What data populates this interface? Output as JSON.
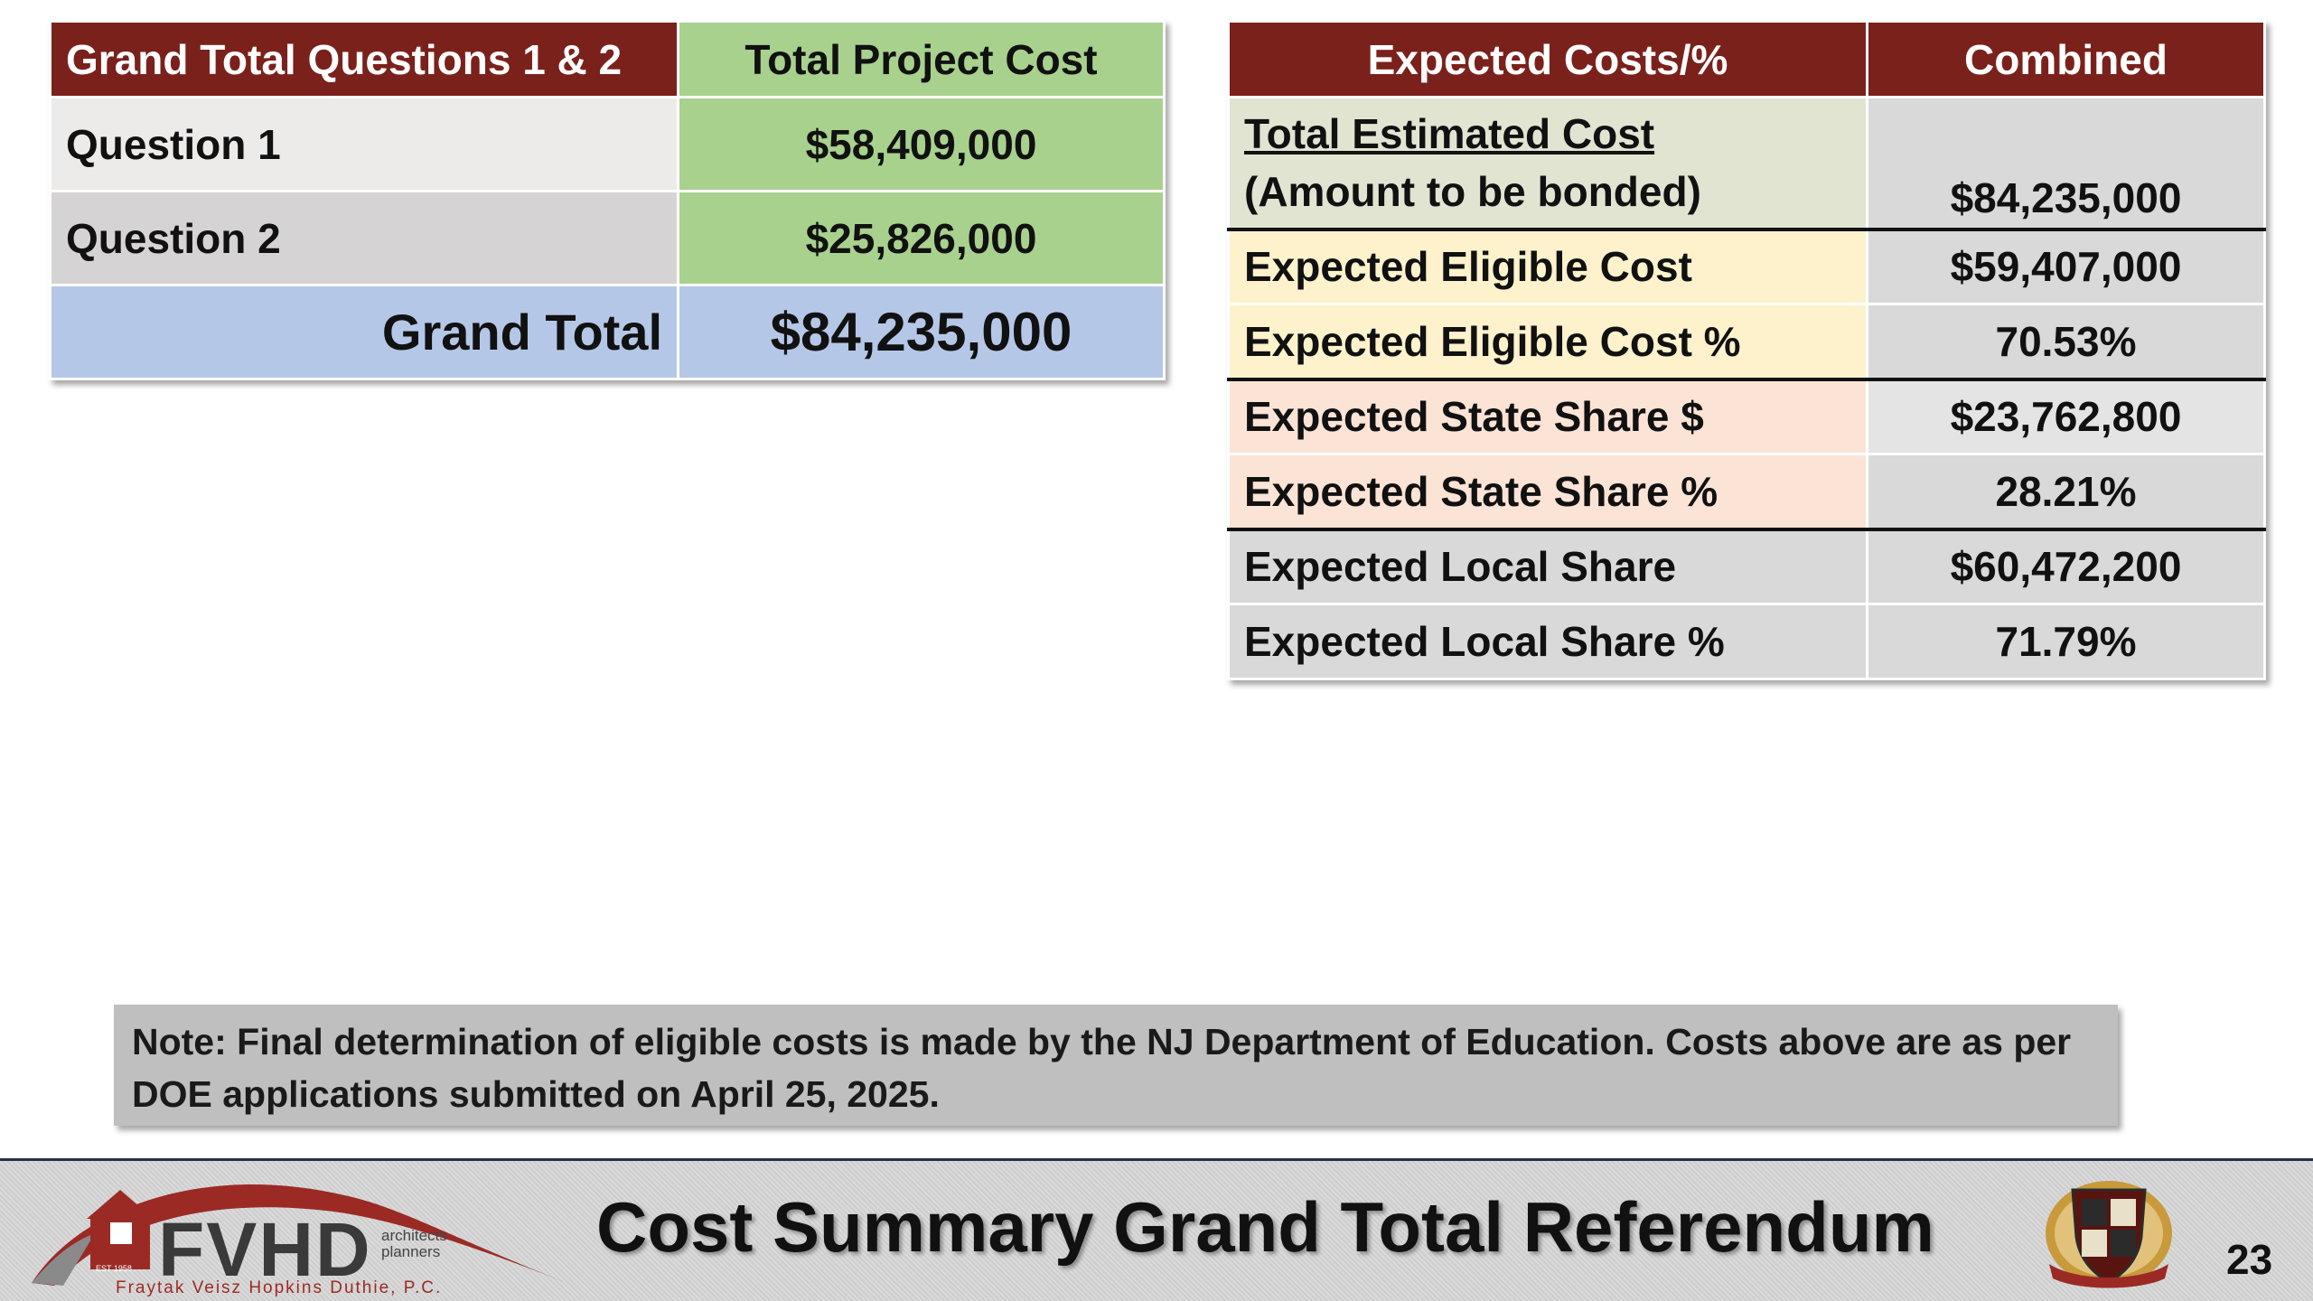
{
  "left_table": {
    "header": {
      "label": "Grand Total Questions 1 & 2",
      "cost": "Total Project Cost"
    },
    "rows": [
      {
        "label": "Question 1",
        "cost": "$58,409,000"
      },
      {
        "label": "Question 2",
        "cost": "$25,826,000"
      }
    ],
    "grand_total": {
      "label": "Grand Total",
      "cost": "$84,235,000"
    }
  },
  "right_table": {
    "header": {
      "label": "Expected Costs/%",
      "value": "Combined"
    },
    "total_estimated": {
      "label_line1": "Total Estimated Cost",
      "label_line2": "(Amount to be bonded)",
      "value": "$84,235,000"
    },
    "rows": [
      {
        "label": "Expected Eligible Cost",
        "value": "$59,407,000"
      },
      {
        "label": "Expected Eligible Cost %",
        "value": "70.53%"
      },
      {
        "label": "Expected State Share $",
        "value": "$23,762,800"
      },
      {
        "label": "Expected State Share %",
        "value": "28.21%"
      },
      {
        "label": "Expected Local Share",
        "value": "$60,472,200"
      },
      {
        "label": "Expected Local Share %",
        "value": "71.79%"
      }
    ]
  },
  "note": "Note: Final determination of eligible costs is made by the NJ Department of Education. Costs above are as per DOE applications submitted on April 25, 2025.",
  "footer": {
    "logo_name": "FVHD",
    "logo_small_1": "architects",
    "logo_small_2": "planners",
    "logo_sub": "Fraytak Veisz Hopkins Duthie, P.C.",
    "logo_est": "EST 1958",
    "title": "Cost Summary Grand Total Referendum",
    "page_number": "23"
  },
  "colors": {
    "header_maroon": "#7b211c",
    "green": "#a9d18e",
    "blue": "#b4c7e7",
    "note_gray": "#bfbfbf"
  }
}
